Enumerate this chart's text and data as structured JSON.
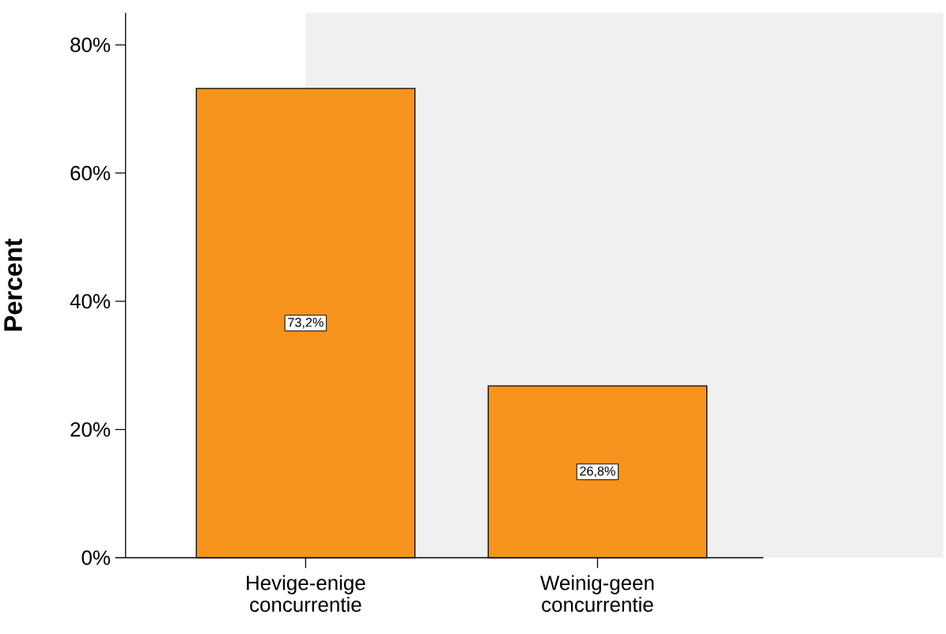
{
  "chart_data": {
    "type": "bar",
    "ylabel": "Percent",
    "categories": [
      "Hevige-enige concurrentie",
      "Weinig-geen concurrentie"
    ],
    "values": [
      73.2,
      26.8
    ],
    "value_labels": [
      "73,2%",
      "26,8%"
    ],
    "color": "#f7941d",
    "ylim": [
      0,
      85
    ],
    "yticks": [
      {
        "value": 0,
        "label": "0%"
      },
      {
        "value": 20,
        "label": "20%"
      },
      {
        "value": 40,
        "label": "40%"
      },
      {
        "value": 60,
        "label": "60%"
      },
      {
        "value": 80,
        "label": "80%"
      }
    ]
  }
}
